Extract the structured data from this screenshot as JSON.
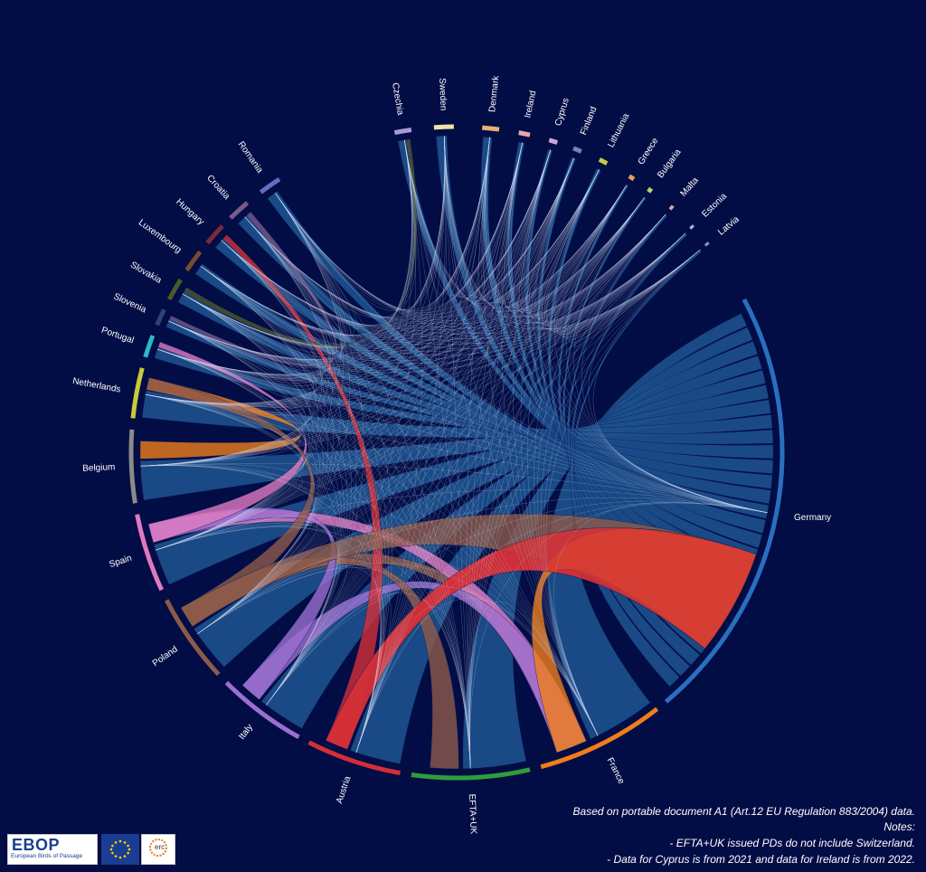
{
  "colors": {
    "background": "#020d45",
    "ribbon_fill": "#1c4f8c",
    "line": "#cfd8f0"
  },
  "chart_data": {
    "type": "chord",
    "groups": [
      {
        "name": "Germany",
        "color": "#2a6fbf"
      },
      {
        "name": "France",
        "color": "#f07d1a"
      },
      {
        "name": "EFTA+UK",
        "color": "#2e9e3a"
      },
      {
        "name": "Austria",
        "color": "#d32f37"
      },
      {
        "name": "Italy",
        "color": "#9b6fcf"
      },
      {
        "name": "Poland",
        "color": "#8d5a4a"
      },
      {
        "name": "Spain",
        "color": "#e07ac0"
      },
      {
        "name": "Belgium",
        "color": "#8a8a8a"
      },
      {
        "name": "Netherlands",
        "color": "#c9c93a"
      },
      {
        "name": "Portugal",
        "color": "#2ab7c9"
      },
      {
        "name": "Slovenia",
        "color": "#34407a"
      },
      {
        "name": "Slovakia",
        "color": "#4b5a2e"
      },
      {
        "name": "Luxembourg",
        "color": "#7a4a2e"
      },
      {
        "name": "Hungary",
        "color": "#7a2a3a"
      },
      {
        "name": "Croatia",
        "color": "#7a5a8a"
      },
      {
        "name": "Romania",
        "color": "#6a6ac0"
      },
      {
        "name": "Czechia",
        "color": "#a89ad8"
      },
      {
        "name": "Sweden",
        "color": "#f2e2a8"
      },
      {
        "name": "Denmark",
        "color": "#e8b070"
      },
      {
        "name": "Ireland",
        "color": "#e8a8a8"
      },
      {
        "name": "Cyprus",
        "color": "#c8a8d8"
      },
      {
        "name": "Finland",
        "color": "#7a7ac8"
      },
      {
        "name": "Lithuania",
        "color": "#c9c94a"
      },
      {
        "name": "Greece",
        "color": "#e89a5a"
      },
      {
        "name": "Bulgaria",
        "color": "#a8d870"
      },
      {
        "name": "Malta",
        "color": "#e0a0a0"
      },
      {
        "name": "Estonia",
        "color": "#a0b8e8"
      },
      {
        "name": "Latvia",
        "color": "#9090b0"
      }
    ],
    "title": "",
    "legend": "none"
  },
  "notes": {
    "source": "Based on portable document A1 (Art.12 EU Regulation 883/2004) data.",
    "heading": "Notes:",
    "note1": "- EFTA+UK issued PDs do not include Switzerland.",
    "note2": "- Data for Cyprus is from 2021 and data for Ireland is from 2022."
  },
  "logos": {
    "ebop_title": "EBOP",
    "ebop_subtitle": "European Birds of Passage",
    "erc": "erc"
  }
}
